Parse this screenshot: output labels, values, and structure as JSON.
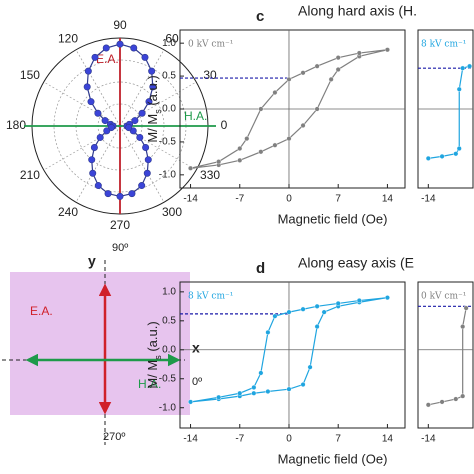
{
  "chart_data": [
    {
      "type": "polar",
      "theta": [
        0,
        10,
        20,
        30,
        40,
        50,
        60,
        70,
        80,
        90,
        100,
        110,
        120,
        130,
        140,
        150,
        160,
        170,
        180,
        190,
        200,
        210,
        220,
        230,
        240,
        250,
        260,
        270,
        280,
        290,
        300,
        310,
        320,
        330,
        340,
        350
      ],
      "values": [
        0.08,
        0.11,
        0.18,
        0.29,
        0.43,
        0.58,
        0.72,
        0.83,
        0.9,
        0.93,
        0.9,
        0.83,
        0.72,
        0.58,
        0.43,
        0.29,
        0.18,
        0.11,
        0.08,
        0.1,
        0.16,
        0.26,
        0.38,
        0.5,
        0.62,
        0.72,
        0.78,
        0.8,
        0.78,
        0.72,
        0.62,
        0.5,
        0.38,
        0.26,
        0.16,
        0.1
      ],
      "rlim": [
        0,
        1
      ],
      "thetaticks": [
        0,
        30,
        60,
        90,
        120,
        150,
        180,
        210,
        240,
        270,
        300,
        330
      ],
      "color": "#2f3a8f",
      "marker_color": "#3b44d8",
      "easy_axis": {
        "label": "E.A.",
        "color": "#c0202a"
      },
      "hard_axis": {
        "label": "H.A.",
        "color": "#1e9a4a"
      }
    },
    {
      "type": "hysteresis",
      "panel": "c",
      "title": "Along hard axis (H.",
      "xlabel": "Magnetic field (Oe)",
      "ylabel": {
        "main": "M/ M",
        "sub": "s",
        "unit": " (a.u.)"
      },
      "x": [
        -14,
        -10,
        -7,
        -4,
        -2,
        0,
        2,
        4,
        6,
        7,
        10,
        14,
        10,
        7,
        4,
        2,
        0,
        -2,
        -4,
        -6,
        -7,
        -10,
        -14
      ],
      "series": [
        {
          "name": "0 kV cm⁻¹",
          "color": "#808080",
          "values": [
            -0.9,
            -0.85,
            -0.78,
            -0.65,
            -0.55,
            -0.45,
            -0.25,
            0,
            0.45,
            0.6,
            0.8,
            0.9,
            0.85,
            0.78,
            0.65,
            0.55,
            0.45,
            0.25,
            0,
            -0.45,
            -0.6,
            -0.8,
            -0.9
          ]
        }
      ],
      "remanence": 0.47,
      "reference_color": "#1a1aa8",
      "xlim": [
        -15.5,
        16.5
      ],
      "ylim": [
        -1.2,
        1.2
      ],
      "xticks": [
        -14,
        -7,
        0,
        7,
        14
      ],
      "yticks": [
        {
          "value": -1,
          "label": "-1.0"
        },
        -0.5,
        {
          "value": 0,
          "label": "0.0"
        },
        0.5,
        {
          "value": 1,
          "label": "1.0"
        }
      ]
    },
    {
      "type": "hysteresis",
      "x": [
        -14,
        -12,
        -10,
        -9.5,
        -9.5,
        -9,
        -8
      ],
      "series": [
        {
          "name": "8 kV cm⁻¹",
          "color": "#1fa5e0",
          "values": [
            -0.75,
            -0.72,
            -0.68,
            -0.6,
            0.3,
            0.62,
            0.65
          ]
        }
      ],
      "remanence": 0.62,
      "reference_color": "#1a1aa8",
      "xlim": [
        -15.5,
        -7.5
      ],
      "ylim": [
        -1.2,
        1.2
      ],
      "xticks": [
        -14
      ]
    },
    {
      "type": "hysteresis",
      "panel": "d",
      "title": "Along easy axis (E",
      "xlabel": "Magnetic field (Oe)",
      "ylabel": {
        "main": "M/ M",
        "sub": "s",
        "unit": " (a.u.)"
      },
      "x": [
        -14,
        -10,
        -7,
        -5,
        -3,
        0,
        2,
        3,
        4,
        5,
        7,
        10,
        14,
        10,
        7,
        4,
        2,
        0,
        -2,
        -3,
        -4,
        -5,
        -7,
        -10,
        -14
      ],
      "series": [
        {
          "name": "8 kV cm⁻¹",
          "color": "#1fa5e0",
          "values": [
            -0.9,
            -0.85,
            -0.8,
            -0.75,
            -0.72,
            -0.68,
            -0.6,
            -0.3,
            0.4,
            0.65,
            0.75,
            0.82,
            0.9,
            0.85,
            0.8,
            0.75,
            0.7,
            0.65,
            0.58,
            0.3,
            -0.4,
            -0.65,
            -0.75,
            -0.82,
            -0.9
          ]
        }
      ],
      "remanence": 0.62,
      "reference_color": "#1a1aa8",
      "xlim": [
        -15.5,
        16.5
      ],
      "ylim": [
        -1.35,
        1.17
      ],
      "xticks": [
        -14,
        -7,
        0,
        7,
        14
      ],
      "yticks": [
        {
          "value": -1,
          "label": "-1.0"
        },
        -0.5,
        {
          "value": 0,
          "label": "0.0"
        },
        0.5,
        {
          "value": 1,
          "label": "1.0"
        }
      ]
    },
    {
      "type": "hysteresis",
      "x": [
        -14,
        -12,
        -10,
        -9,
        -9,
        -8.5
      ],
      "series": [
        {
          "name": "0 kV cm⁻¹",
          "color": "#808080",
          "values": [
            -0.95,
            -0.9,
            -0.85,
            -0.8,
            0.4,
            0.72
          ]
        }
      ],
      "remanence": 0.75,
      "reference_color": "#1a1aa8",
      "xlim": [
        -15.5,
        -7.5
      ],
      "ylim": [
        -1.35,
        1.17
      ],
      "xticks": [
        -14
      ]
    }
  ],
  "diagram": {
    "y_label": "y",
    "x_label": "x",
    "top": "90º",
    "right": "0º",
    "bottom": "270º",
    "ea": "E.A.",
    "ha": "H.A."
  }
}
